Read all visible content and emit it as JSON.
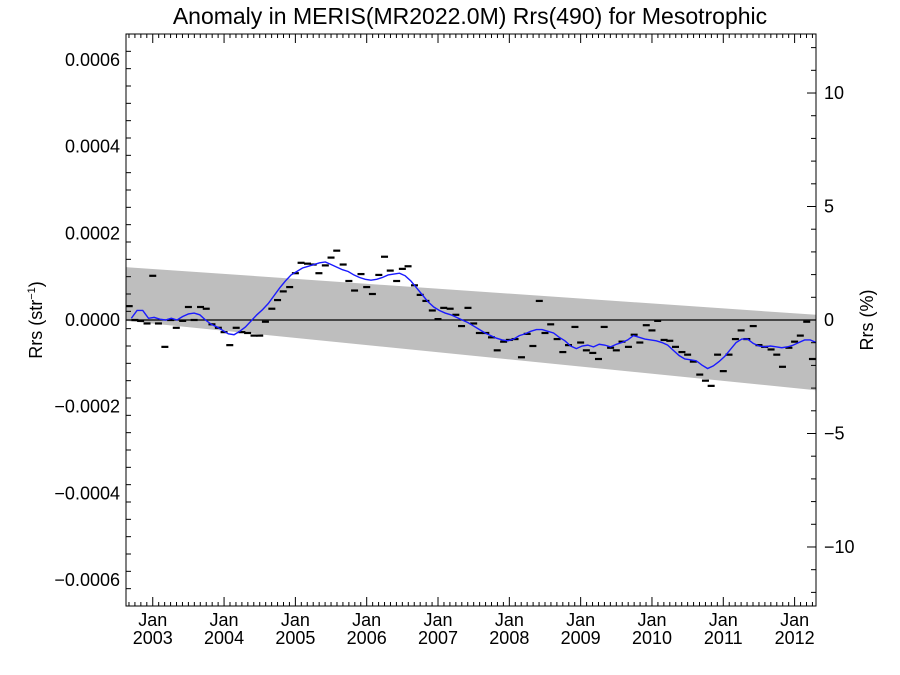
{
  "chart_data": {
    "type": "scatter",
    "title": "Anomaly in MERIS(MR2022.0M) Rrs(490) for Mesotrophic",
    "ylabel_left": "Rrs (str⁻¹)",
    "ylabel_right": "Rrs (%)",
    "ylim_left": [
      -0.00066,
      0.00066
    ],
    "ylim_right": [
      -12.6,
      12.6
    ],
    "xlim": [
      2002.625,
      2012.3
    ],
    "left_ticks": [
      {
        "v": 0.0006,
        "label": "0.0006"
      },
      {
        "v": 0.0004,
        "label": "0.0004"
      },
      {
        "v": 0.0002,
        "label": "0.0002"
      },
      {
        "v": 0.0,
        "label": "0.0000"
      },
      {
        "v": -0.0002,
        "label": "−0.0002"
      },
      {
        "v": -0.0004,
        "label": "−0.0004"
      },
      {
        "v": -0.0006,
        "label": "−0.0006"
      }
    ],
    "right_ticks": [
      {
        "v": 10,
        "label": "10"
      },
      {
        "v": 5,
        "label": "5"
      },
      {
        "v": 0,
        "label": "0"
      },
      {
        "v": -5,
        "label": "−5"
      },
      {
        "v": -10,
        "label": "−10"
      }
    ],
    "x_ticks": [
      {
        "v": 2003.0,
        "month": "Jan",
        "year": "2003"
      },
      {
        "v": 2004.0,
        "month": "Jan",
        "year": "2004"
      },
      {
        "v": 2005.0,
        "month": "Jan",
        "year": "2005"
      },
      {
        "v": 2006.0,
        "month": "Jan",
        "year": "2006"
      },
      {
        "v": 2007.0,
        "month": "Jan",
        "year": "2007"
      },
      {
        "v": 2008.0,
        "month": "Jan",
        "year": "2008"
      },
      {
        "v": 2009.0,
        "month": "Jan",
        "year": "2009"
      },
      {
        "v": 2010.0,
        "month": "Jan",
        "year": "2010"
      },
      {
        "v": 2011.0,
        "month": "Jan",
        "year": "2011"
      },
      {
        "v": 2012.0,
        "month": "Jan",
        "year": "2012"
      }
    ],
    "trend_band": {
      "x": [
        2002.625,
        2012.3
      ],
      "upper": [
        0.000122,
        1.2e-05
      ],
      "lower": [
        -2e-06,
        -0.000162
      ],
      "color": "#bebebe"
    },
    "monthly_anomalies": [
      [
        2002.67,
        3.2e-05
      ],
      [
        2002.75,
        0.0
      ],
      [
        2002.83,
        -2e-06
      ],
      [
        2002.92,
        -8e-06
      ],
      [
        2003.0,
        0.000102
      ],
      [
        2003.08,
        -8e-06
      ],
      [
        2003.17,
        -6.2e-05
      ],
      [
        2003.25,
        0.0
      ],
      [
        2003.33,
        -1.8e-05
      ],
      [
        2003.42,
        -2e-06
      ],
      [
        2003.5,
        3e-05
      ],
      [
        2003.58,
        0.0
      ],
      [
        2003.67,
        3e-05
      ],
      [
        2003.75,
        2.6e-05
      ],
      [
        2003.83,
        -1e-05
      ],
      [
        2003.92,
        -1.8e-05
      ],
      [
        2004.0,
        -2.8e-05
      ],
      [
        2004.08,
        -5.8e-05
      ],
      [
        2004.17,
        -1.8e-05
      ],
      [
        2004.25,
        -2.8e-05
      ],
      [
        2004.33,
        -3e-05
      ],
      [
        2004.42,
        -3.6e-05
      ],
      [
        2004.5,
        -3.6e-05
      ],
      [
        2004.58,
        -4e-06
      ],
      [
        2004.67,
        2.6e-05
      ],
      [
        2004.75,
        4.6e-05
      ],
      [
        2004.83,
        6.6e-05
      ],
      [
        2004.92,
        7.6e-05
      ],
      [
        2005.0,
        0.000108
      ],
      [
        2005.08,
        0.000132
      ],
      [
        2005.17,
        0.00013
      ],
      [
        2005.25,
        0.000128
      ],
      [
        2005.33,
        0.000108
      ],
      [
        2005.42,
        0.000126
      ],
      [
        2005.5,
        0.000144
      ],
      [
        2005.58,
        0.00016
      ],
      [
        2005.67,
        0.000128
      ],
      [
        2005.75,
        9e-05
      ],
      [
        2005.83,
        6.8e-05
      ],
      [
        2005.92,
        0.000106
      ],
      [
        2006.0,
        7.6e-05
      ],
      [
        2006.08,
        6e-05
      ],
      [
        2006.17,
        0.000104
      ],
      [
        2006.25,
        0.000146
      ],
      [
        2006.33,
        0.000114
      ],
      [
        2006.42,
        9e-05
      ],
      [
        2006.5,
        0.000118
      ],
      [
        2006.58,
        0.000124
      ],
      [
        2006.67,
        8e-05
      ],
      [
        2006.75,
        5.8e-05
      ],
      [
        2006.83,
        4.4e-05
      ],
      [
        2006.92,
        2.2e-05
      ],
      [
        2007.0,
        2e-06
      ],
      [
        2007.08,
        2.8e-05
      ],
      [
        2007.17,
        2.6e-05
      ],
      [
        2007.25,
        1.2e-05
      ],
      [
        2007.33,
        -1.4e-05
      ],
      [
        2007.42,
        2.8e-05
      ],
      [
        2007.5,
        -8e-06
      ],
      [
        2007.58,
        -3e-05
      ],
      [
        2007.67,
        -3e-05
      ],
      [
        2007.75,
        -4e-05
      ],
      [
        2007.83,
        -7e-05
      ],
      [
        2007.92,
        -5e-05
      ],
      [
        2008.0,
        -4.6e-05
      ],
      [
        2008.08,
        -4.4e-05
      ],
      [
        2008.17,
        -8.6e-05
      ],
      [
        2008.25,
        -3.2e-05
      ],
      [
        2008.33,
        -6e-05
      ],
      [
        2008.42,
        4.4e-05
      ],
      [
        2008.5,
        -3e-05
      ],
      [
        2008.58,
        -1e-05
      ],
      [
        2008.67,
        -4.4e-05
      ],
      [
        2008.75,
        -7.4e-05
      ],
      [
        2008.83,
        -5.8e-05
      ],
      [
        2008.92,
        -1.6e-05
      ],
      [
        2009.0,
        -5.2e-05
      ],
      [
        2009.08,
        -7e-05
      ],
      [
        2009.17,
        -7.6e-05
      ],
      [
        2009.25,
        -9e-05
      ],
      [
        2009.33,
        -1.6e-05
      ],
      [
        2009.42,
        -6.4e-05
      ],
      [
        2009.5,
        -7e-05
      ],
      [
        2009.58,
        -5e-05
      ],
      [
        2009.67,
        -6.2e-05
      ],
      [
        2009.75,
        -3.4e-05
      ],
      [
        2009.83,
        -5.2e-05
      ],
      [
        2009.92,
        -1.2e-05
      ],
      [
        2010.0,
        -2.4e-05
      ],
      [
        2010.08,
        -2e-06
      ],
      [
        2010.17,
        -4.6e-05
      ],
      [
        2010.25,
        -4.8e-05
      ],
      [
        2010.33,
        -6.2e-05
      ],
      [
        2010.42,
        -7.4e-05
      ],
      [
        2010.5,
        -8e-05
      ],
      [
        2010.58,
        -9.6e-05
      ],
      [
        2010.67,
        -0.000126
      ],
      [
        2010.75,
        -0.00014
      ],
      [
        2010.83,
        -0.000152
      ],
      [
        2010.92,
        -8e-05
      ],
      [
        2011.0,
        -0.000118
      ],
      [
        2011.08,
        -8e-05
      ],
      [
        2011.17,
        -4.4e-05
      ],
      [
        2011.25,
        -2.4e-05
      ],
      [
        2011.33,
        -4.4e-05
      ],
      [
        2011.42,
        -1.4e-05
      ],
      [
        2011.5,
        -5.8e-05
      ],
      [
        2011.58,
        -6.2e-05
      ],
      [
        2011.67,
        -6.8e-05
      ],
      [
        2011.75,
        -8e-05
      ],
      [
        2011.83,
        -0.000108
      ],
      [
        2011.92,
        -6.4e-05
      ],
      [
        2012.0,
        -5e-05
      ],
      [
        2012.08,
        -3.6e-05
      ],
      [
        2012.17,
        -4e-06
      ],
      [
        2012.25,
        -9e-05
      ]
    ],
    "running_mean": {
      "color": "#1a1aff",
      "points": [
        [
          2002.7,
          4e-06
        ],
        [
          2002.78,
          2.2e-05
        ],
        [
          2002.86,
          2.2e-05
        ],
        [
          2002.94,
          4e-06
        ],
        [
          2003.02,
          6e-06
        ],
        [
          2003.1,
          2e-06
        ],
        [
          2003.18,
          0.0
        ],
        [
          2003.26,
          4e-06
        ],
        [
          2003.34,
          0.0
        ],
        [
          2003.42,
          8e-06
        ],
        [
          2003.5,
          1.4e-05
        ],
        [
          2003.58,
          1.6e-05
        ],
        [
          2003.66,
          1.2e-05
        ],
        [
          2003.74,
          0.0
        ],
        [
          2003.82,
          -1e-05
        ],
        [
          2003.9,
          -1.6e-05
        ],
        [
          2003.98,
          -2.4e-05
        ],
        [
          2004.06,
          -3.2e-05
        ],
        [
          2004.14,
          -3.4e-05
        ],
        [
          2004.22,
          -2.6e-05
        ],
        [
          2004.3,
          -1.6e-05
        ],
        [
          2004.38,
          -2e-06
        ],
        [
          2004.46,
          1.2e-05
        ],
        [
          2004.54,
          2.4e-05
        ],
        [
          2004.62,
          3.8e-05
        ],
        [
          2004.7,
          5.6e-05
        ],
        [
          2004.78,
          7.4e-05
        ],
        [
          2004.86,
          9e-05
        ],
        [
          2004.94,
          0.000104
        ],
        [
          2005.02,
          0.000112
        ],
        [
          2005.1,
          0.00012
        ],
        [
          2005.18,
          0.000124
        ],
        [
          2005.26,
          0.000128
        ],
        [
          2005.34,
          0.000132
        ],
        [
          2005.42,
          0.000134
        ],
        [
          2005.5,
          0.000128
        ],
        [
          2005.58,
          0.000122
        ],
        [
          2005.66,
          0.000116
        ],
        [
          2005.74,
          0.000112
        ],
        [
          2005.82,
          0.000104
        ],
        [
          2005.9,
          9.8e-05
        ],
        [
          2005.98,
          9.4e-05
        ],
        [
          2006.06,
          9.2e-05
        ],
        [
          2006.14,
          9.4e-05
        ],
        [
          2006.22,
          9.8e-05
        ],
        [
          2006.3,
          0.000104
        ],
        [
          2006.38,
          0.000106
        ],
        [
          2006.46,
          0.000108
        ],
        [
          2006.54,
          0.000102
        ],
        [
          2006.62,
          9e-05
        ],
        [
          2006.7,
          7.4e-05
        ],
        [
          2006.78,
          5.8e-05
        ],
        [
          2006.86,
          4.2e-05
        ],
        [
          2006.94,
          3e-05
        ],
        [
          2007.02,
          2.2e-05
        ],
        [
          2007.1,
          1.6e-05
        ],
        [
          2007.18,
          1.2e-05
        ],
        [
          2007.26,
          6e-06
        ],
        [
          2007.34,
          0.0
        ],
        [
          2007.42,
          -6e-06
        ],
        [
          2007.5,
          -1.4e-05
        ],
        [
          2007.58,
          -2.2e-05
        ],
        [
          2007.66,
          -3e-05
        ],
        [
          2007.74,
          -3.6e-05
        ],
        [
          2007.82,
          -4.2e-05
        ],
        [
          2007.9,
          -4.6e-05
        ],
        [
          2007.98,
          -4.8e-05
        ],
        [
          2008.06,
          -4.4e-05
        ],
        [
          2008.14,
          -3.6e-05
        ],
        [
          2008.22,
          -3.2e-05
        ],
        [
          2008.3,
          -2.6e-05
        ],
        [
          2008.38,
          -2.2e-05
        ],
        [
          2008.46,
          -2.2e-05
        ],
        [
          2008.54,
          -2.6e-05
        ],
        [
          2008.62,
          -3e-05
        ],
        [
          2008.7,
          -4e-05
        ],
        [
          2008.78,
          -4.8e-05
        ],
        [
          2008.86,
          -6e-05
        ],
        [
          2008.94,
          -6.6e-05
        ],
        [
          2009.02,
          -6e-05
        ],
        [
          2009.1,
          -5.8e-05
        ],
        [
          2009.18,
          -6.2e-05
        ],
        [
          2009.26,
          -5.6e-05
        ],
        [
          2009.34,
          -5.8e-05
        ],
        [
          2009.42,
          -6.2e-05
        ],
        [
          2009.5,
          -5.6e-05
        ],
        [
          2009.58,
          -5.2e-05
        ],
        [
          2009.66,
          -4.6e-05
        ],
        [
          2009.74,
          -3.6e-05
        ],
        [
          2009.82,
          -4e-05
        ],
        [
          2009.9,
          -4.4e-05
        ],
        [
          2009.98,
          -4.6e-05
        ],
        [
          2010.06,
          -4.8e-05
        ],
        [
          2010.14,
          -5.2e-05
        ],
        [
          2010.22,
          -5.8e-05
        ],
        [
          2010.3,
          -7e-05
        ],
        [
          2010.38,
          -8.2e-05
        ],
        [
          2010.46,
          -9e-05
        ],
        [
          2010.54,
          -9.2e-05
        ],
        [
          2010.62,
          -9.4e-05
        ],
        [
          2010.7,
          -0.000104
        ],
        [
          2010.78,
          -0.000112
        ],
        [
          2010.86,
          -0.000106
        ],
        [
          2010.94,
          -9.6e-05
        ],
        [
          2011.02,
          -8.4e-05
        ],
        [
          2011.1,
          -6.8e-05
        ],
        [
          2011.18,
          -5.2e-05
        ],
        [
          2011.26,
          -4.4e-05
        ],
        [
          2011.34,
          -4.4e-05
        ],
        [
          2011.42,
          -5.4e-05
        ],
        [
          2011.5,
          -6e-05
        ],
        [
          2011.58,
          -6.2e-05
        ],
        [
          2011.66,
          -6e-05
        ],
        [
          2011.74,
          -6.2e-05
        ],
        [
          2011.82,
          -6.4e-05
        ],
        [
          2011.9,
          -6.2e-05
        ],
        [
          2011.98,
          -5.8e-05
        ],
        [
          2012.06,
          -5.2e-05
        ],
        [
          2012.14,
          -4.6e-05
        ],
        [
          2012.22,
          -4.6e-05
        ],
        [
          2012.3,
          -5.2e-05
        ]
      ]
    },
    "zero_line": 0,
    "grid": false
  }
}
